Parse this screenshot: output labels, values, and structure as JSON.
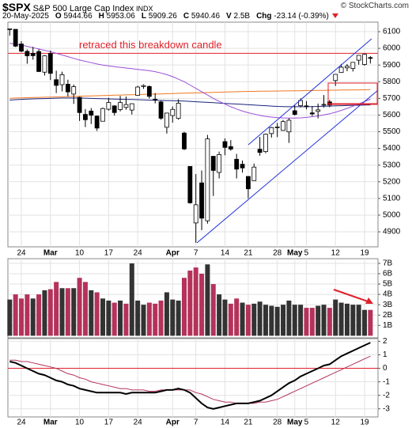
{
  "header": {
    "symbol": "$SPX",
    "name": "S&P 500 Large Cap Index",
    "exchange": "INDX",
    "source": "© StockCharts.com",
    "date": "20-May-2025",
    "quote": [
      {
        "label": "O",
        "value": 5944.66
      },
      {
        "label": "H",
        "value": 5953.06
      },
      {
        "label": "L",
        "value": 5909.26
      },
      {
        "label": "C",
        "value": 5940.46
      },
      {
        "label": "V",
        "value": "2.5B"
      },
      {
        "label": "Chg",
        "value": "-23.14 (-0.39%)"
      }
    ]
  },
  "chart_data": [
    {
      "type": "candlestick",
      "categories": [
        null,
        null,
        "24",
        null,
        null,
        null,
        null,
        "Mar",
        null,
        null,
        null,
        null,
        "10",
        null,
        null,
        null,
        null,
        "17",
        null,
        null,
        null,
        null,
        "24",
        null,
        null,
        null,
        null,
        null,
        "Apr",
        null,
        null,
        null,
        "7",
        null,
        null,
        null,
        null,
        "14",
        null,
        null,
        null,
        "21",
        null,
        null,
        null,
        null,
        "28",
        null,
        null,
        "May",
        null,
        "5",
        null,
        null,
        null,
        null,
        "12",
        null,
        null,
        null,
        null,
        "19",
        null
      ],
      "open": [
        6117,
        6114,
        6026,
        5982,
        5970,
        5981,
        5857,
        5969,
        5812,
        5782,
        5785,
        5726,
        5706,
        5604,
        5624,
        5594,
        5563,
        5635,
        5655,
        5633,
        5646,
        5630,
        5718,
        5771,
        5771,
        5695,
        5679,
        5527,
        5597,
        5580,
        5492,
        5292,
        4953,
        5193,
        4966,
        5353,
        5256,
        5441,
        5411,
        5335,
        5305,
        5232,
        5207,
        5395,
        5381,
        5489,
        5529,
        5508,
        5499,
        5626,
        5656,
        5655,
        5613,
        5622,
        5663,
        5679,
        5807,
        5855,
        5883,
        5879,
        5929,
        5903,
        5944.66
      ],
      "high": [
        6118,
        6114,
        6043,
        5993,
        6009,
        5994,
        5959,
        5987,
        5866,
        5860,
        5812,
        5783,
        5710,
        5636,
        5642,
        5597,
        5645,
        5704,
        5659,
        5715,
        5711,
        5670,
        5775,
        5784,
        5778,
        5732,
        5685,
        5613,
        5651,
        5695,
        5500,
        5293,
        5246,
        5268,
        5481,
        5353,
        5381,
        5460,
        5450,
        5367,
        5328,
        5233,
        5309,
        5469,
        5489,
        5529,
        5553,
        5571,
        5581,
        5659,
        5700,
        5684,
        5654,
        5669,
        5720,
        5691,
        5844,
        5906,
        5906,
        5917,
        5959,
        5968,
        5953.06
      ],
      "low": [
        6076,
        6008,
        5977,
        5908,
        5932,
        5858,
        5837,
        5810,
        5732,
        5742,
        5711,
        5667,
        5565,
        5528,
        5546,
        5505,
        5563,
        5627,
        5597,
        5622,
        5632,
        5603,
        5718,
        5757,
        5699,
        5670,
        5572,
        5489,
        5555,
        5572,
        5390,
        5069,
        4835,
        4910,
        4949,
        5115,
        5220,
        5359,
        5386,
        5220,
        5255,
        5101,
        5207,
        5356,
        5371,
        5465,
        5468,
        5505,
        5433,
        5597,
        5646,
        5634,
        5594,
        5580,
        5645,
        5647,
        5775,
        5853,
        5863,
        5861,
        5902,
        5896,
        5909.26
      ],
      "close": [
        6117,
        6013,
        5983,
        5955,
        5956,
        5861,
        5955,
        5850,
        5778,
        5842,
        5739,
        5770,
        5615,
        5572,
        5599,
        5522,
        5639,
        5675,
        5615,
        5675,
        5663,
        5668,
        5768,
        5777,
        5712,
        5693,
        5581,
        5612,
        5634,
        5671,
        5397,
        5074,
        5062,
        4982,
        5457,
        5268,
        5363,
        5406,
        5396,
        5276,
        5283,
        5158,
        5288,
        5376,
        5485,
        5525,
        5529,
        5561,
        5569,
        5604,
        5687,
        5650,
        5607,
        5631,
        5664,
        5660,
        5844,
        5887,
        5893,
        5916,
        5958,
        5964,
        5940.46
      ],
      "up_color": "#ffffff",
      "down_color": "#000000",
      "overlays": [
        {
          "color": "#f07820",
          "values": [
            5700,
            5702,
            5703,
            5704,
            5705,
            5706,
            5707,
            5708,
            5709,
            5710,
            5711,
            5712,
            5713,
            5714,
            5715,
            5716,
            5717,
            5718,
            5719,
            5720,
            5721,
            5722,
            5723,
            5724,
            5725,
            5726,
            5727,
            5728,
            5729,
            5730,
            5731,
            5732,
            5733,
            5734,
            5735,
            5736,
            5737,
            5738,
            5739,
            5740,
            5741,
            5742,
            5742,
            5743,
            5743,
            5744,
            5744,
            5745,
            5745,
            5746,
            5746,
            5747,
            5747,
            5748,
            5748,
            5749,
            5749,
            5750,
            5750,
            5751,
            5751,
            5752,
            5752
          ]
        },
        {
          "color": "#1a237e",
          "values": [
            5690,
            5692,
            5694,
            5696,
            5697,
            5698,
            5699,
            5700,
            5701,
            5702,
            5702,
            5702,
            5702,
            5701,
            5700,
            5699,
            5698,
            5697,
            5696,
            5695,
            5694,
            5693,
            5692,
            5691,
            5690,
            5689,
            5688,
            5687,
            5686,
            5685,
            5684,
            5682,
            5680,
            5678,
            5676,
            5674,
            5672,
            5670,
            5668,
            5666,
            5664,
            5662,
            5660,
            5658,
            5656,
            5654,
            5652,
            5651,
            5650,
            5650,
            5650,
            5650,
            5651,
            5652,
            5653,
            5654,
            5655,
            5656,
            5657,
            5658,
            5659,
            5660,
            5661
          ]
        },
        {
          "color": "#9b4fd8",
          "values": [
            6030,
            6025,
            6020,
            6012,
            6004,
            5996,
            5988,
            5980,
            5970,
            5960,
            5950,
            5940,
            5930,
            5922,
            5914,
            5906,
            5900,
            5895,
            5890,
            5886,
            5882,
            5878,
            5874,
            5870,
            5866,
            5860,
            5852,
            5842,
            5830,
            5815,
            5800,
            5780,
            5760,
            5740,
            5720,
            5700,
            5682,
            5666,
            5650,
            5636,
            5624,
            5614,
            5606,
            5598,
            5592,
            5588,
            5585,
            5583,
            5582,
            5582,
            5583,
            5586,
            5590,
            5595,
            5601,
            5608,
            5617,
            5628,
            5640,
            5653,
            5667,
            5681,
            5695
          ]
        }
      ],
      "annotation": {
        "text": "retraced this breakdown candle",
        "value": 5970,
        "color": "#e0202a"
      },
      "ylim": [
        4810,
        6157
      ],
      "yticks": [
        4900,
        5000,
        5100,
        5200,
        5300,
        5400,
        5500,
        5600,
        5700,
        5800,
        5900,
        6000,
        6100
      ],
      "grid": true
    },
    {
      "type": "bar",
      "values": [
        3.5,
        4.0,
        3.6,
        4.0,
        3.6,
        4.0,
        4.4,
        4.5,
        5.2,
        4.6,
        4.6,
        4.6,
        5.6,
        5.2,
        4.4,
        4.2,
        3.6,
        3.4,
        3.2,
        3.4,
        3.1,
        7.0,
        3.4,
        3.0,
        3.2,
        3.1,
        3.4,
        4.2,
        3.5,
        3.4,
        5.6,
        6.3,
        6.6,
        6.0,
        6.9,
        5.0,
        4.0,
        3.5,
        3.1,
        3.6,
        3.2,
        3.0,
        3.1,
        3.3,
        3.0,
        2.9,
        2.8,
        3.0,
        3.4,
        3.0,
        3.0,
        2.7,
        2.7,
        2.9,
        3.0,
        2.7,
        3.5,
        3.2,
        3.1,
        3.0,
        3.0,
        2.5,
        2.5
      ],
      "up_color": "#333333",
      "down_color": "#b5325b",
      "ylim": [
        -0.2,
        7.45
      ],
      "yticks": [
        {
          "value": 1,
          "label": "1B"
        },
        {
          "value": 2,
          "label": "2B"
        },
        {
          "value": 3,
          "label": "3B"
        },
        {
          "value": 4,
          "label": "4B"
        },
        {
          "value": 5,
          "label": "5B"
        },
        {
          "value": 6,
          "label": "6B"
        },
        {
          "value": 7,
          "label": "7B"
        }
      ],
      "grid": true
    },
    {
      "type": "line",
      "series": [
        {
          "color": "#000000",
          "values": [
            0.5,
            0.4,
            0.2,
            0.0,
            -0.2,
            -0.4,
            -0.5,
            -0.7,
            -0.9,
            -1.0,
            -1.2,
            -1.3,
            -1.5,
            -1.6,
            -1.7,
            -1.8,
            -1.8,
            -1.8,
            -1.8,
            -1.8,
            -1.9,
            -1.8,
            -1.8,
            -1.8,
            -1.8,
            -1.8,
            -1.7,
            -1.6,
            -1.6,
            -1.5,
            -1.6,
            -1.8,
            -2.2,
            -2.6,
            -2.9,
            -3.0,
            -2.9,
            -2.8,
            -2.7,
            -2.6,
            -2.6,
            -2.6,
            -2.5,
            -2.4,
            -2.2,
            -2.0,
            -1.7,
            -1.4,
            -1.1,
            -0.9,
            -0.6,
            -0.4,
            -0.2,
            0.0,
            0.2,
            0.3,
            0.6,
            0.9,
            1.1,
            1.3,
            1.5,
            1.7,
            1.9
          ]
        },
        {
          "color": "#b5325b",
          "values": [
            0.6,
            0.6,
            0.5,
            0.5,
            0.4,
            0.3,
            0.2,
            0.1,
            0.0,
            -0.2,
            -0.4,
            -0.5,
            -0.7,
            -0.8,
            -1.0,
            -1.1,
            -1.2,
            -1.3,
            -1.4,
            -1.5,
            -1.5,
            -1.6,
            -1.6,
            -1.6,
            -1.7,
            -1.7,
            -1.6,
            -1.6,
            -1.6,
            -1.6,
            -1.6,
            -1.6,
            -1.8,
            -1.9,
            -2.1,
            -2.3,
            -2.4,
            -2.5,
            -2.5,
            -2.6,
            -2.6,
            -2.6,
            -2.6,
            -2.5,
            -2.5,
            -2.4,
            -2.3,
            -2.1,
            -1.9,
            -1.7,
            -1.5,
            -1.3,
            -1.1,
            -0.9,
            -0.7,
            -0.5,
            -0.3,
            -0.1,
            0.1,
            0.3,
            0.5,
            0.7,
            0.9
          ]
        }
      ],
      "zero_line_color": "#e0202a",
      "ylim": [
        -3.6,
        2.2
      ],
      "yticks": [
        2,
        1,
        0,
        -1,
        -2,
        -3
      ],
      "grid": true
    }
  ]
}
